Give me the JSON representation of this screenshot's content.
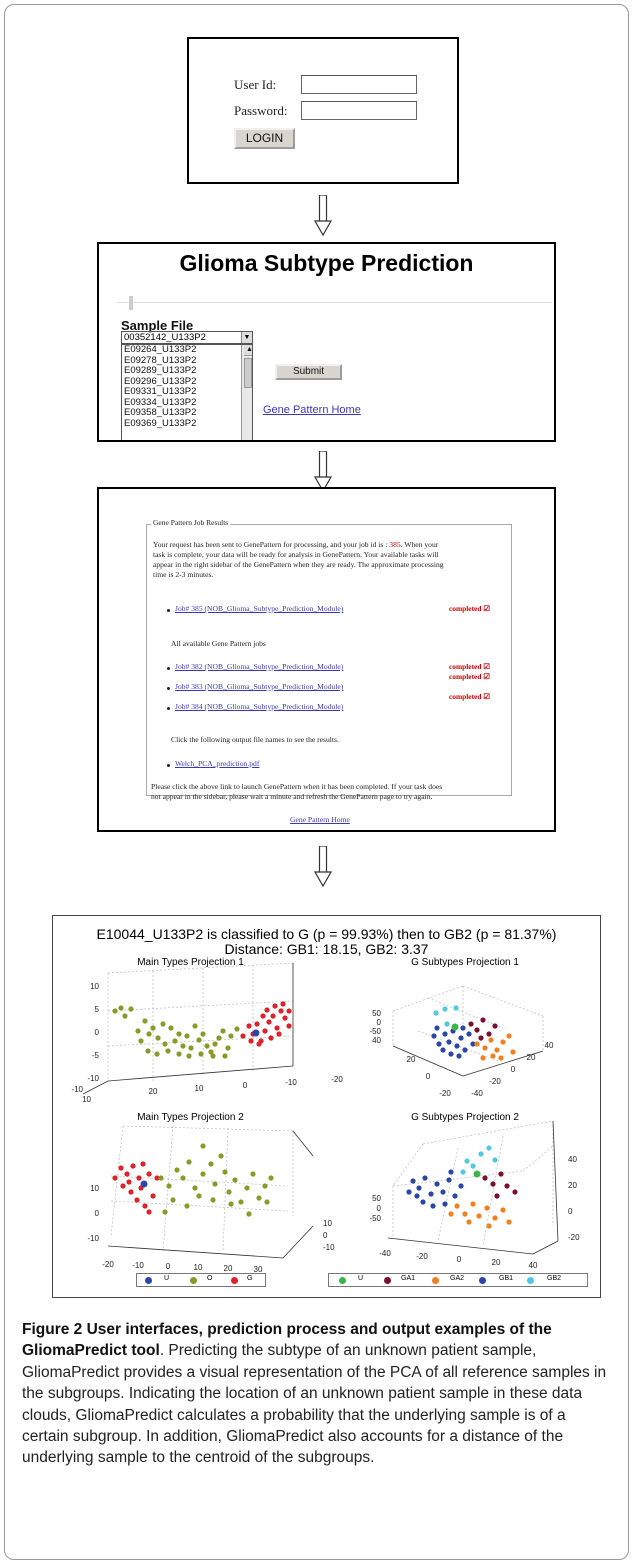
{
  "login": {
    "user_label": "User Id:",
    "password_label": "Password:",
    "button": "LOGIN"
  },
  "glioma": {
    "title": "Glioma Subtype Prediction",
    "sample_file_label": "Sample File",
    "selected": "00352142_U133P2",
    "options": [
      "E09264_U133P2",
      "E09278_U133P2",
      "E09289_U133P2",
      "E09296_U133P2",
      "E09331_U133P2",
      "E09334_U133P2",
      "E09358_U133P2",
      "E09369_U133P2"
    ],
    "submit": "Submit",
    "home_link": "Gene Pattern Home"
  },
  "jobs": {
    "legend": "Gene Pattern Job Results",
    "intro_lines": [
      "Your request has been sent to GenePattern for processing, and your job id is : ",
      "task is complete, your data will be ready for analysis in GenePattern. Your available tasks will",
      "appear in the right sidebar of the GenePattern when they are ready. The approximate processing",
      "time is 2-3 minutes."
    ],
    "job_id": "385",
    "intro_tail": ". When your",
    "main_job": "Job# 385 (NOB_Glioma_Subtype_Prediction_Module)",
    "all_label": "All available Gene Pattern jobs",
    "jobs": [
      "Job# 382 (NOB_Glioma_Subtype_Prediction_Module)",
      "Job# 383 (NOB_Glioma_Subtype_Prediction_Module)",
      "Job# 384 (NOB_Glioma_Subtype_Prediction_Module)"
    ],
    "completed": "completed",
    "output_label": "Click the following output file names to see the results.",
    "output_file": "Welch_PCA_prediction.pdf",
    "footer_lines": [
      "Please click the above link to launch GenePattern when it has been completed. If your task does",
      "not appear in the sidebar, please wait a minute and refresh the GenePattern page to try again."
    ],
    "home_link": "Gene Pattern Home"
  },
  "plots": {
    "title_line1": "E10044_U133P2 is classified to G (p = 99.93%) then to GB2 (p = 81.37%)",
    "title_line2": "Distance: GB1: 18.15, GB2: 3.37",
    "subplot_titles": [
      "Main Types Projection 1",
      "G Subtypes Projection 1",
      "Main Types Projection 2",
      "G Subtypes Projection 2"
    ],
    "legend_main": [
      {
        "label": "U",
        "color": "#2a47a8"
      },
      {
        "label": "O",
        "color": "#8a9a2a"
      },
      {
        "label": "G",
        "color": "#e0202a"
      }
    ],
    "legend_sub": [
      {
        "label": "U",
        "color": "#39b54a"
      },
      {
        "label": "GA1",
        "color": "#7a1030"
      },
      {
        "label": "GA2",
        "color": "#f08020"
      },
      {
        "label": "GB1",
        "color": "#2a47a8"
      },
      {
        "label": "GB2",
        "color": "#50c8e0"
      }
    ],
    "p1_ticks_y": [
      "10",
      "5",
      "0",
      "-5",
      "-10"
    ],
    "p1_ticks_a": [
      "-10",
      "10"
    ],
    "p1_ticks_x": [
      "20",
      "10",
      "0",
      "-10",
      "-20"
    ],
    "p2_ticks_z": [
      "50",
      "0",
      "-50",
      "40"
    ],
    "p2_ticks_a": [
      "20",
      "0",
      "-20"
    ],
    "p2_ticks_b": [
      "-40",
      "-20",
      "0",
      "20",
      "40"
    ],
    "p3_ticks_z": [
      "10",
      "0",
      "-10"
    ],
    "p3_ticks_x": [
      "-20",
      "-10",
      "0",
      "10",
      "20",
      "30"
    ],
    "p3_ticks_y": [
      "10",
      "0",
      "-10"
    ],
    "p4_ticks_z": [
      "50",
      "0",
      "-50"
    ],
    "p4_ticks_x": [
      "-40",
      "-20",
      "0",
      "20",
      "40"
    ],
    "p4_ticks_y": [
      "40",
      "20",
      "0",
      "-20"
    ]
  },
  "caption": {
    "bold": "Figure 2 User interfaces, prediction process and output examples of the GliomaPredict tool",
    "text": ". Predicting the subtype of an unknown patient sample, GliomaPredict provides a visual representation of the PCA of all reference samples in the subgroups. Indicating the location of an unknown patient sample in these data clouds, GliomaPredict calculates a probability that the underlying sample is of a certain subgroup. In addition, GliomaPredict also accounts for a distance of the underlying sample to the centroid of the subgroups."
  }
}
